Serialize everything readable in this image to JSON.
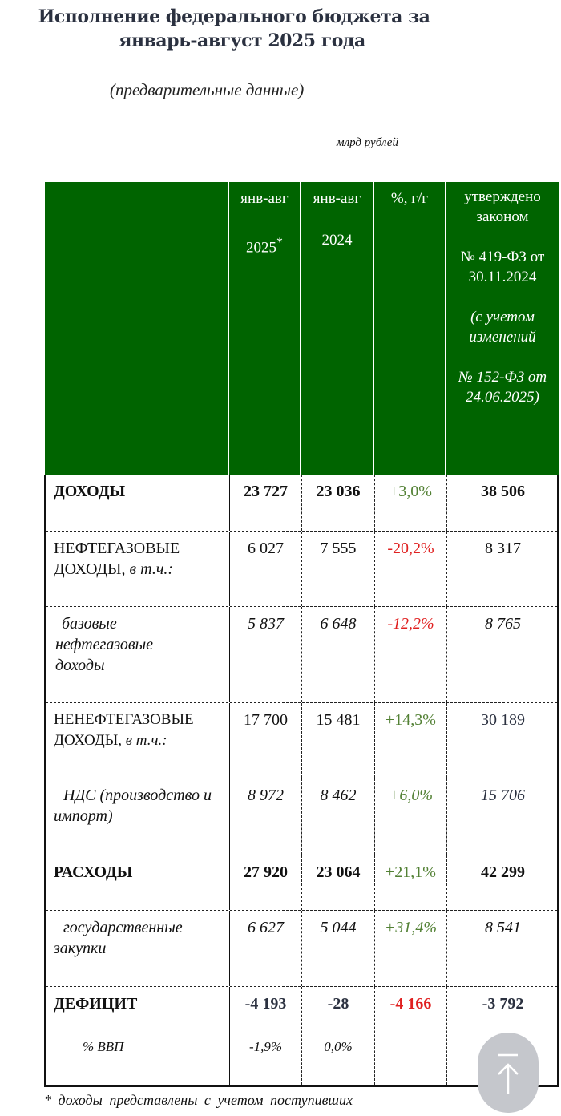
{
  "title_line1": "Исполнение федерального бюджета за",
  "title_line2": "январь-август 2025 года",
  "subtitle": "(предварительные данные)",
  "units": "млрд рублей",
  "header": {
    "col1_a": "янв-авг",
    "col1_b": "2025",
    "col1_sup": "*",
    "col2_a": "янв-авг",
    "col2_b": "2024",
    "col3": "%, г/г",
    "col4_a": "утверждено законом",
    "col4_b": "№ 419-ФЗ от 30.11.2024",
    "col4_c": "(с учетом изменений",
    "col4_d": "№ 152-ФЗ от 24.06.2025)"
  },
  "rows": [
    {
      "label": "ДОХОДЫ",
      "v2025": "23 727",
      "v2024": "23 036",
      "yoy": "+3,0%",
      "law": "38 506"
    },
    {
      "label": "НЕФТЕГАЗОВЫЕ ДОХОДЫ,",
      "label_suffix": "в т.ч.:",
      "v2025": "6 027",
      "v2024": "7 555",
      "yoy": "-20,2%",
      "law": "8 317"
    },
    {
      "label": "базовые нефтегазовые доходы",
      "v2025": "5 837",
      "v2024": "6 648",
      "yoy": "-12,2%",
      "law": "8 765"
    },
    {
      "label": "НЕНЕФТЕГАЗОВЫЕ ДОХОДЫ,",
      "label_suffix": "в т.ч.:",
      "v2025": "17 700",
      "v2024": "15 481",
      "yoy": "+14,3%",
      "law": "30 189"
    },
    {
      "label": "НДС (производство и импорт)",
      "v2025": "8 972",
      "v2024": "8 462",
      "yoy": "+6,0%",
      "law": "15 706"
    },
    {
      "label": "РАСХОДЫ",
      "v2025": "27 920",
      "v2024": "23 064",
      "yoy": "+21,1%",
      "law": "42 299"
    },
    {
      "label": "государственные закупки",
      "v2025": "6 627",
      "v2024": "5 044",
      "yoy": "+31,4%",
      "law": "8 541"
    },
    {
      "label": "ДЕФИЦИТ",
      "v2025": "-4 193",
      "v2024": "-28",
      "yoy": "-4 166",
      "law": "-3 792",
      "sub_label": "% ВВП",
      "sub_2025": "-1,9%",
      "sub_2024": "0,0%"
    }
  ],
  "footnote": "* доходы представлены с учетом поступивших",
  "colors": {
    "header_bg": "#006400",
    "positive": "#538135",
    "negative": "#e02020"
  },
  "scroll_top_icon": "arrow-up-to-top-icon"
}
